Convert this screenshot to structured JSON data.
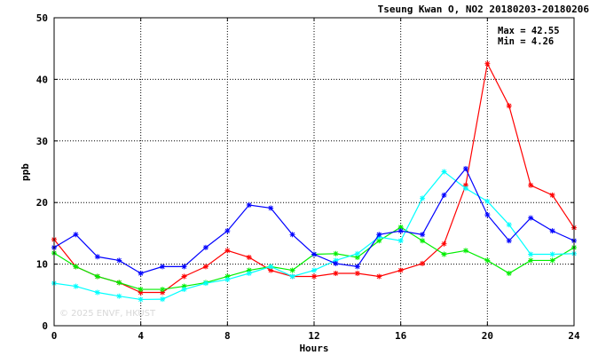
{
  "chart_data": {
    "type": "line",
    "title": "Tseung Kwan O, NO2 20180203-20180206",
    "xlabel": "Hours",
    "ylabel": "ppb",
    "xlim": [
      0,
      24
    ],
    "ylim": [
      0,
      50
    ],
    "xticks": [
      0,
      4,
      8,
      12,
      16,
      20,
      24
    ],
    "yticks": [
      0,
      10,
      20,
      30,
      40,
      50
    ],
    "grid": true,
    "x": [
      0,
      1,
      2,
      3,
      4,
      5,
      6,
      7,
      8,
      9,
      10,
      11,
      12,
      13,
      14,
      15,
      16,
      17,
      18,
      19,
      20,
      21,
      22,
      23,
      24
    ],
    "series": [
      {
        "color": "#ff0000",
        "values": [
          14.0,
          9.6,
          8.0,
          7.0,
          5.4,
          5.4,
          8.0,
          9.6,
          12.2,
          11.1,
          9.0,
          8.0,
          8.0,
          8.5,
          8.5,
          8.0,
          9.0,
          10.1,
          13.3,
          22.8,
          42.55,
          35.7,
          22.8,
          21.2,
          15.9
        ]
      },
      {
        "color": "#00ee00",
        "values": [
          11.8,
          9.6,
          8.0,
          7.0,
          5.9,
          5.9,
          6.4,
          7.0,
          8.0,
          9.0,
          9.6,
          9.0,
          11.6,
          11.7,
          11.1,
          13.8,
          16.0,
          13.8,
          11.6,
          12.2,
          10.6,
          8.5,
          10.6,
          10.6,
          12.7
        ]
      },
      {
        "color": "#00ffff",
        "values": [
          6.9,
          6.4,
          5.4,
          4.8,
          4.26,
          4.3,
          5.9,
          6.9,
          7.5,
          8.5,
          9.6,
          8.0,
          9.0,
          10.6,
          11.7,
          14.4,
          13.8,
          20.7,
          25.0,
          22.3,
          20.2,
          16.4,
          11.6,
          11.6,
          11.7
        ]
      },
      {
        "color": "#0000ff",
        "values": [
          12.7,
          14.8,
          11.2,
          10.6,
          8.5,
          9.6,
          9.6,
          12.7,
          15.4,
          19.6,
          19.1,
          14.8,
          11.6,
          10.1,
          9.6,
          14.8,
          15.4,
          14.8,
          21.2,
          25.5,
          18.0,
          13.8,
          17.5,
          15.4,
          13.8
        ]
      }
    ],
    "annotations": {
      "max_label": "Max = 42.55",
      "min_label": "Min =  4.26",
      "watermark": "© 2025  ENVF, HKUST"
    }
  }
}
